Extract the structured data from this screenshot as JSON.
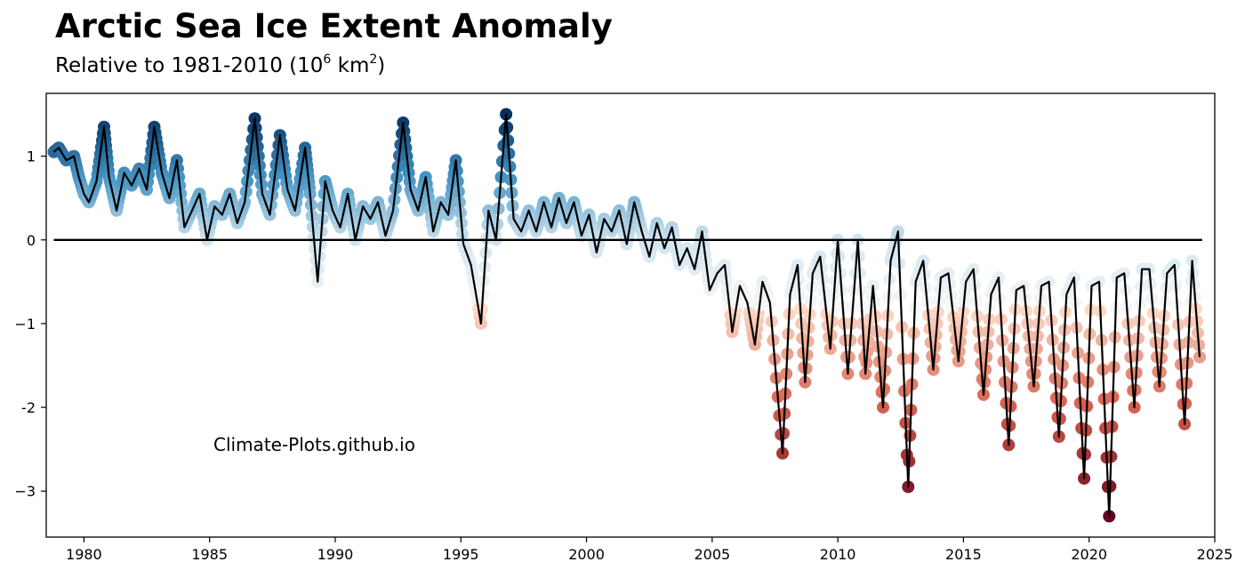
{
  "header": {
    "title": "Arctic Sea Ice Extent Anomaly",
    "subtitle_prefix": "Relative to 1981-2010 (10",
    "subtitle_exp1": "6",
    "subtitle_mid": " km",
    "subtitle_exp2": "2",
    "subtitle_suffix": ")"
  },
  "watermark": "Climate-Plots.github.io",
  "colors": {
    "line": "#000000",
    "zero_line": "#000000",
    "positive_dark": "#053061",
    "positive_mid": "#4393c3",
    "neutral": "#f7f7f7",
    "negative_mid": "#d6604d",
    "negative_dark": "#67001f"
  },
  "chart_data": {
    "type": "line",
    "title": "Arctic Sea Ice Extent Anomaly",
    "subtitle": "Relative to 1981-2010 (10^6 km^2)",
    "xlabel": "",
    "ylabel": "",
    "xlim": [
      1978.5,
      2025.0
    ],
    "ylim": [
      -3.55,
      1.75
    ],
    "x_ticks": [
      1980,
      1985,
      1990,
      1995,
      2000,
      2005,
      2010,
      2015,
      2020,
      2025
    ],
    "y_ticks": [
      1,
      0,
      -1,
      -2,
      -3
    ],
    "x_tick_labels": [
      "1980",
      "1985",
      "1990",
      "1995",
      "2000",
      "2005",
      "2010",
      "2015",
      "2020",
      "2025"
    ],
    "y_tick_labels": [
      "1",
      "0",
      "−1",
      "-2",
      "−3"
    ],
    "reference_line": 0,
    "grid": false,
    "series": [
      {
        "x": [
          1978.8,
          1979.0,
          1979.3,
          1979.6,
          1979.8,
          1980.0,
          1980.2,
          1980.5,
          1980.8,
          1981.0,
          1981.3,
          1981.6,
          1981.9,
          1982.2,
          1982.5,
          1982.8,
          1983.1,
          1983.4,
          1983.7,
          1984.0,
          1984.3,
          1984.6,
          1984.9,
          1985.2,
          1985.5,
          1985.8,
          1986.1,
          1986.4,
          1986.8,
          1987.1,
          1987.4,
          1987.8,
          1988.1,
          1988.4,
          1988.8,
          1989.0,
          1989.3,
          1989.6,
          1989.9,
          1990.2,
          1990.5,
          1990.8,
          1991.1,
          1991.4,
          1991.7,
          1992.0,
          1992.3,
          1992.7,
          1993.0,
          1993.3,
          1993.6,
          1993.9,
          1994.2,
          1994.5,
          1994.8,
          1995.1,
          1995.4,
          1995.8,
          1996.1,
          1996.4,
          1996.8,
          1997.1,
          1997.4,
          1997.7,
          1998.0,
          1998.3,
          1998.6,
          1998.9,
          1999.2,
          1999.5,
          1999.8,
          2000.1,
          2000.4,
          2000.7,
          2001.0,
          2001.3,
          2001.6,
          2001.9,
          2002.2,
          2002.5,
          2002.8,
          2003.1,
          2003.4,
          2003.7,
          2004.0,
          2004.3,
          2004.6,
          2004.9,
          2005.2,
          2005.5,
          2005.8,
          2006.1,
          2006.4,
          2006.7,
          2007.0,
          2007.3,
          2007.8,
          2008.1,
          2008.4,
          2008.7,
          2009.0,
          2009.3,
          2009.7,
          2010.0,
          2010.4,
          2010.8,
          2011.1,
          2011.4,
          2011.8,
          2012.1,
          2012.4,
          2012.8,
          2013.1,
          2013.4,
          2013.8,
          2014.1,
          2014.4,
          2014.8,
          2015.1,
          2015.4,
          2015.8,
          2016.1,
          2016.4,
          2016.8,
          2017.1,
          2017.4,
          2017.8,
          2018.1,
          2018.4,
          2018.8,
          2019.1,
          2019.4,
          2019.8,
          2020.1,
          2020.4,
          2020.8,
          2021.1,
          2021.4,
          2021.8,
          2022.1,
          2022.4,
          2022.8,
          2023.1,
          2023.4,
          2023.8,
          2024.1,
          2024.4
        ],
        "y": [
          1.05,
          1.1,
          0.95,
          1.0,
          0.75,
          0.55,
          0.45,
          0.7,
          1.35,
          0.75,
          0.35,
          0.8,
          0.65,
          0.85,
          0.6,
          1.35,
          0.8,
          0.5,
          0.95,
          0.15,
          0.35,
          0.55,
          0.0,
          0.4,
          0.3,
          0.55,
          0.2,
          0.45,
          1.45,
          0.55,
          0.3,
          1.25,
          0.6,
          0.35,
          1.1,
          0.55,
          -0.5,
          0.7,
          0.35,
          0.15,
          0.55,
          0.0,
          0.4,
          0.25,
          0.45,
          0.05,
          0.35,
          1.4,
          0.6,
          0.35,
          0.75,
          0.1,
          0.45,
          0.3,
          0.95,
          -0.05,
          -0.3,
          -1.0,
          0.35,
          0.0,
          1.5,
          0.25,
          0.1,
          0.35,
          0.1,
          0.45,
          0.15,
          0.5,
          0.2,
          0.45,
          0.05,
          0.3,
          -0.15,
          0.25,
          0.1,
          0.35,
          -0.05,
          0.45,
          0.1,
          -0.2,
          0.2,
          -0.1,
          0.15,
          -0.3,
          -0.1,
          -0.35,
          0.1,
          -0.6,
          -0.4,
          -0.3,
          -1.1,
          -0.55,
          -0.75,
          -1.25,
          -0.5,
          -0.75,
          -2.55,
          -0.65,
          -0.3,
          -1.7,
          -0.4,
          -0.2,
          -1.3,
          0.0,
          -1.6,
          0.0,
          -1.6,
          -0.55,
          -2.0,
          -0.25,
          0.1,
          -2.95,
          -0.5,
          -0.25,
          -1.55,
          -0.45,
          -0.4,
          -1.45,
          -0.5,
          -0.35,
          -1.85,
          -0.65,
          -0.45,
          -2.45,
          -0.6,
          -0.55,
          -1.75,
          -0.55,
          -0.5,
          -2.35,
          -0.65,
          -0.45,
          -2.85,
          -0.55,
          -0.5,
          -3.3,
          -0.45,
          -0.4,
          -2.0,
          -0.35,
          -0.35,
          -1.75,
          -0.4,
          -0.3,
          -2.2,
          -0.25,
          -1.4
        ]
      }
    ]
  }
}
